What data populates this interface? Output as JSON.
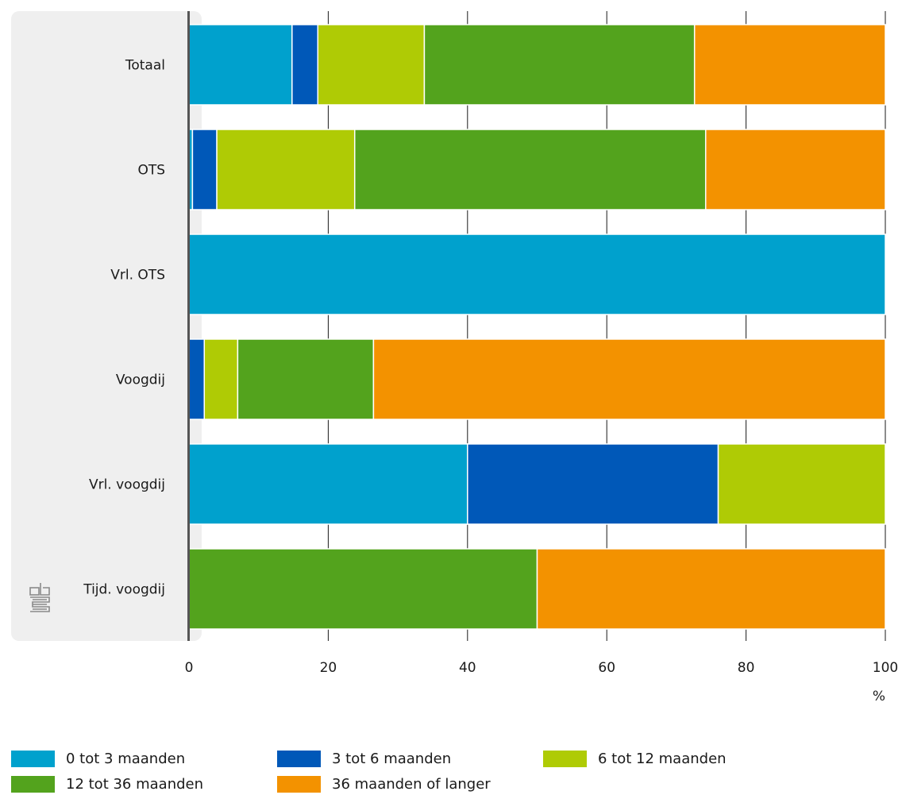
{
  "chart_data": {
    "type": "bar",
    "orientation": "horizontal",
    "stacked": true,
    "categories": [
      "Totaal",
      "OTS",
      "Vrl. OTS",
      "Voogdij",
      "Vrl. voogdij",
      "Tijd. voogdij"
    ],
    "series": [
      {
        "name": "0 tot 3 maanden",
        "color": "#00a1cd",
        "values": [
          14.8,
          0.5,
          100,
          0,
          40,
          0
        ]
      },
      {
        "name": "3 tot 6 maanden",
        "color": "#0058b8",
        "values": [
          3.7,
          3.5,
          0,
          2.2,
          36,
          0
        ]
      },
      {
        "name": "6 tot 12 maanden",
        "color": "#afcb05",
        "values": [
          15.3,
          19.8,
          0,
          4.8,
          24,
          0
        ]
      },
      {
        "name": "12 tot 36 maanden",
        "color": "#53a31d",
        "values": [
          38.8,
          50.4,
          0,
          19.5,
          0,
          50
        ]
      },
      {
        "name": "36 maanden of langer",
        "color": "#f39200",
        "values": [
          27.4,
          25.8,
          0,
          73.5,
          0,
          50
        ]
      }
    ],
    "xlim": [
      0,
      100
    ],
    "xticks": [
      "0",
      "20",
      "40",
      "60",
      "80",
      "100"
    ],
    "xunit": "%",
    "grid": true,
    "legend_position": "bottom"
  },
  "logo": {
    "icon": "cbs-logo-icon"
  }
}
